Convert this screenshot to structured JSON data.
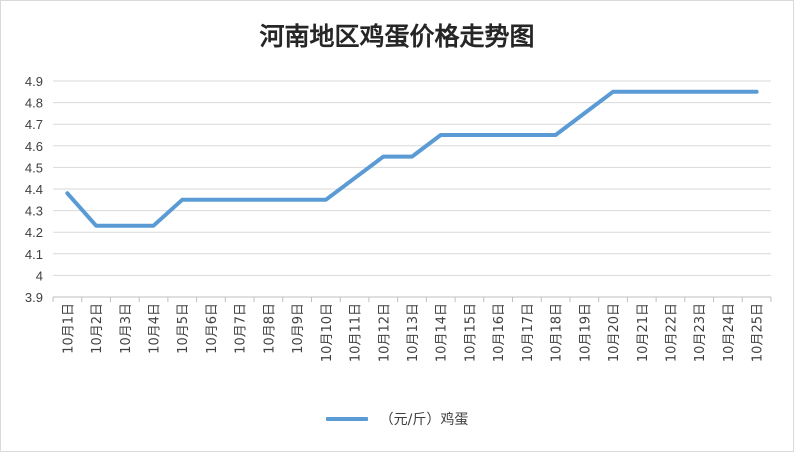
{
  "chart_data": {
    "type": "line",
    "title": "河南地区鸡蛋价格走势图",
    "xlabel": "",
    "ylabel": "",
    "ylim": [
      3.9,
      4.9
    ],
    "yticks": [
      "3.9",
      "4",
      "4.1",
      "4.2",
      "4.3",
      "4.4",
      "4.5",
      "4.6",
      "4.7",
      "4.8",
      "4.9"
    ],
    "categories": [
      "10月1日",
      "10月2日",
      "10月3日",
      "10月4日",
      "10月5日",
      "10月6日",
      "10月7日",
      "10月8日",
      "10月9日",
      "10月10日",
      "10月11日",
      "10月12日",
      "10月13日",
      "10月14日",
      "10月15日",
      "10月16日",
      "10月17日",
      "10月18日",
      "10月19日",
      "10月20日",
      "10月21日",
      "10月22日",
      "10月23日",
      "10月24日",
      "10月25日"
    ],
    "series": [
      {
        "name": "（元/斤）鸡蛋",
        "color": "#5b9bd5",
        "values": [
          4.38,
          4.23,
          4.23,
          4.23,
          4.35,
          4.35,
          4.35,
          4.35,
          4.35,
          4.35,
          4.45,
          4.55,
          4.55,
          4.65,
          4.65,
          4.65,
          4.65,
          4.65,
          4.75,
          4.85,
          4.85,
          4.85,
          4.85,
          4.85,
          4.85
        ]
      }
    ],
    "grid": true,
    "legend": "bottom"
  }
}
